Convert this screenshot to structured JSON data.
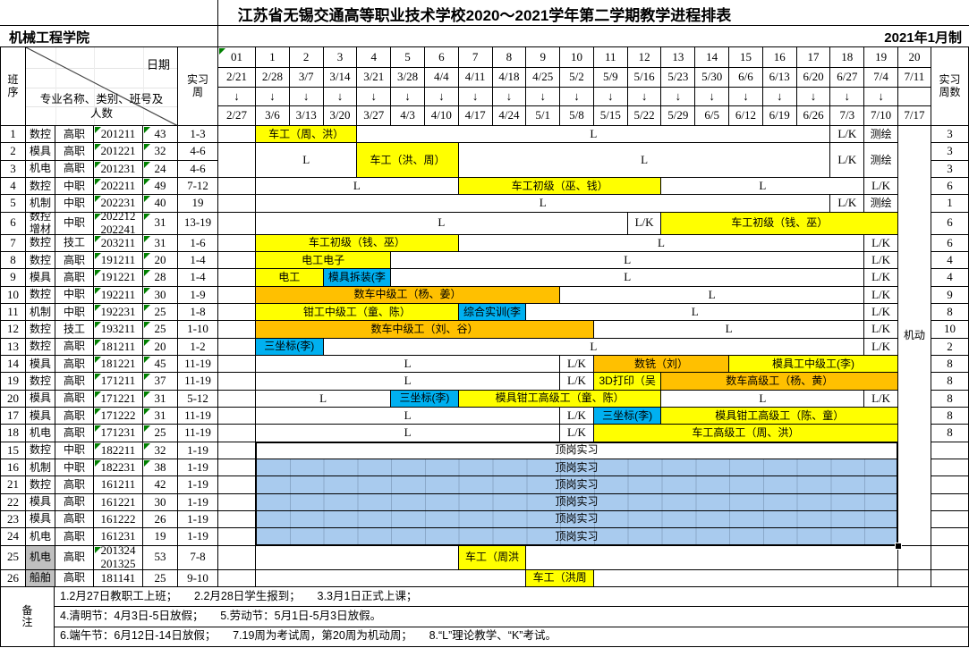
{
  "title": "江苏省无锡交通高等职业技术学校2020～2021学年第二学期教学进程排表",
  "org": "机械工程学院",
  "made": "2021年1月制",
  "header": {
    "seq": "班\n序",
    "dateLabel": "日期",
    "majorLabel": "专业名称、类别、班号及\n人数",
    "practiceWeek": "实习\n周",
    "practiceWeekCount": "实习\n周数",
    "flexible": "机动",
    "arrow": "↓"
  },
  "colors": {
    "yellow": "#FFFF00",
    "orange": "#FFC000",
    "cyan": "#00B0F0",
    "ojt_blue": "#A9CBEE",
    "gray_cell": "#C0C0C0",
    "comment_green": "#008000"
  },
  "weeks": [
    {
      "n": "01",
      "d1": "2/21",
      "d2": "2/27",
      "arrow": true
    },
    {
      "n": "1",
      "d1": "2/28",
      "d2": "3/6",
      "arrow": true
    },
    {
      "n": "2",
      "d1": "3/7",
      "d2": "3/13",
      "arrow": true
    },
    {
      "n": "3",
      "d1": "3/14",
      "d2": "3/20",
      "arrow": true
    },
    {
      "n": "4",
      "d1": "3/21",
      "d2": "3/27",
      "arrow": true
    },
    {
      "n": "5",
      "d1": "3/28",
      "d2": "4/3",
      "arrow": true
    },
    {
      "n": "6",
      "d1": "4/4",
      "d2": "4/10",
      "arrow": true
    },
    {
      "n": "7",
      "d1": "4/11",
      "d2": "4/17",
      "arrow": true
    },
    {
      "n": "8",
      "d1": "4/18",
      "d2": "4/24",
      "arrow": true
    },
    {
      "n": "9",
      "d1": "4/25",
      "d2": "5/1",
      "arrow": true
    },
    {
      "n": "10",
      "d1": "5/2",
      "d2": "5/8",
      "arrow": true
    },
    {
      "n": "11",
      "d1": "5/9",
      "d2": "5/15",
      "arrow": true
    },
    {
      "n": "12",
      "d1": "5/16",
      "d2": "5/22",
      "arrow": true
    },
    {
      "n": "13",
      "d1": "5/23",
      "d2": "5/29",
      "arrow": true
    },
    {
      "n": "14",
      "d1": "5/30",
      "d2": "6/5",
      "arrow": true
    },
    {
      "n": "15",
      "d1": "6/6",
      "d2": "6/12",
      "arrow": true
    },
    {
      "n": "16",
      "d1": "6/13",
      "d2": "6/19",
      "arrow": true
    },
    {
      "n": "17",
      "d1": "6/20",
      "d2": "6/26",
      "arrow": true
    },
    {
      "n": "18",
      "d1": "6/27",
      "d2": "7/3",
      "arrow": true
    },
    {
      "n": "19",
      "d1": "7/4",
      "d2": "7/10",
      "arrow": true
    },
    {
      "n": "20",
      "d1": "7/11",
      "d2": "7/17",
      "arrow": false
    }
  ],
  "rows": [
    {
      "seq": "1",
      "major": "数控",
      "cat": "高职",
      "cls": "201211",
      "cnt": "43",
      "wk": "1-3",
      "val": "3",
      "mark": "both",
      "tl": {
        "span": 1,
        "segs": [
          {
            "s": 1,
            "e": 3,
            "t": "车工（周、洪）",
            "c": "y"
          },
          {
            "s": 4,
            "e": 17,
            "t": "L",
            "c": "w"
          },
          {
            "s": 18,
            "e": 18,
            "t": "L/K",
            "c": "w"
          },
          {
            "s": 19,
            "e": 19,
            "t": "测绘",
            "c": "w"
          }
        ]
      }
    },
    {
      "seq": "2",
      "major": "模具",
      "cat": "高职",
      "cls": "201221",
      "cnt": "32",
      "wk": "4-6",
      "val": "3",
      "mark": "both",
      "tl": {
        "span": 2,
        "segs": [
          {
            "s": 1,
            "e": 3,
            "t": "L",
            "c": "w"
          },
          {
            "s": 4,
            "e": 6,
            "t": "车工（洪、周）",
            "c": "y"
          },
          {
            "s": 7,
            "e": 17,
            "t": "L",
            "c": "w"
          },
          {
            "s": 18,
            "e": 18,
            "t": "L/K",
            "c": "w"
          },
          {
            "s": 19,
            "e": 19,
            "t": "测绘",
            "c": "w"
          }
        ]
      }
    },
    {
      "seq": "3",
      "major": "机电",
      "cat": "高职",
      "cls": "201231",
      "cnt": "24",
      "wk": "4-6",
      "val": "3",
      "mark": "both",
      "tl": null
    },
    {
      "seq": "4",
      "major": "数控",
      "cat": "中职",
      "cls": "202211",
      "cnt": "49",
      "wk": "7-12",
      "val": "6",
      "mark": "both",
      "tl": {
        "span": 1,
        "segs": [
          {
            "s": 1,
            "e": 6,
            "t": "L",
            "c": "w"
          },
          {
            "s": 7,
            "e": 12,
            "t": "车工初级（巫、钱）",
            "c": "y"
          },
          {
            "s": 13,
            "e": 18,
            "t": "L",
            "c": "w"
          },
          {
            "s": 19,
            "e": 19,
            "t": "L/K",
            "c": "w"
          }
        ]
      }
    },
    {
      "seq": "5",
      "major": "机制",
      "cat": "中职",
      "cls": "202231",
      "cnt": "40",
      "wk": "19",
      "val": "1",
      "mark": "both",
      "tl": {
        "span": 1,
        "segs": [
          {
            "s": 1,
            "e": 17,
            "t": "L",
            "c": "w"
          },
          {
            "s": 18,
            "e": 18,
            "t": "L/K",
            "c": "w"
          },
          {
            "s": 19,
            "e": 19,
            "t": "测绘",
            "c": "w"
          }
        ]
      }
    },
    {
      "seq": "6",
      "major": "数控\n增材",
      "cat": "中职",
      "cls": "202212\n202241",
      "cnt": "31",
      "wk": "13-19",
      "val": "6",
      "mark": "both",
      "tl": {
        "span": 1,
        "segs": [
          {
            "s": 1,
            "e": 11,
            "t": "L",
            "c": "w"
          },
          {
            "s": 12,
            "e": 12,
            "t": "L/K",
            "c": "w"
          },
          {
            "s": 13,
            "e": 19,
            "t": "车工初级（钱、巫）",
            "c": "y"
          }
        ]
      }
    },
    {
      "seq": "7",
      "major": "数控",
      "cat": "技工",
      "cls": "203211",
      "cnt": "31",
      "wk": "1-6",
      "val": "6",
      "mark": "both",
      "tl": {
        "span": 1,
        "segs": [
          {
            "s": 1,
            "e": 6,
            "t": "车工初级（钱、巫）",
            "c": "y"
          },
          {
            "s": 7,
            "e": 18,
            "t": "L",
            "c": "w"
          },
          {
            "s": 19,
            "e": 19,
            "t": "L/K",
            "c": "w"
          }
        ]
      }
    },
    {
      "seq": "8",
      "major": "数控",
      "cat": "高职",
      "cls": "191211",
      "cnt": "20",
      "wk": "1-4",
      "val": "4",
      "mark": "both",
      "tl": {
        "span": 1,
        "segs": [
          {
            "s": 1,
            "e": 4,
            "t": "电工电子",
            "c": "y"
          },
          {
            "s": 5,
            "e": 18,
            "t": "L",
            "c": "w"
          },
          {
            "s": 19,
            "e": 19,
            "t": "L/K",
            "c": "w"
          }
        ]
      }
    },
    {
      "seq": "9",
      "major": "模具",
      "cat": "高职",
      "cls": "191221",
      "cnt": "28",
      "wk": "1-4",
      "val": "4",
      "mark": "both",
      "tl": {
        "span": 1,
        "segs": [
          {
            "s": 1,
            "e": 2,
            "t": "电工",
            "c": "y"
          },
          {
            "s": 3,
            "e": 4,
            "t": "模具拆装(李",
            "c": "c"
          },
          {
            "s": 5,
            "e": 18,
            "t": "L",
            "c": "w"
          },
          {
            "s": 19,
            "e": 19,
            "t": "L/K",
            "c": "w"
          }
        ]
      }
    },
    {
      "seq": "10",
      "major": "数控",
      "cat": "中职",
      "cls": "192211",
      "cnt": "30",
      "wk": "1-9",
      "val": "9",
      "mark": "both",
      "tl": {
        "span": 1,
        "segs": [
          {
            "s": 1,
            "e": 9,
            "t": "数车中级工（杨、姜）",
            "c": "o"
          },
          {
            "s": 10,
            "e": 18,
            "t": "L",
            "c": "w"
          },
          {
            "s": 19,
            "e": 19,
            "t": "L/K",
            "c": "w"
          }
        ]
      }
    },
    {
      "seq": "11",
      "major": "机制",
      "cat": "中职",
      "cls": "192231",
      "cnt": "25",
      "wk": "1-8",
      "val": "8",
      "mark": "both",
      "tl": {
        "span": 1,
        "segs": [
          {
            "s": 1,
            "e": 6,
            "t": "钳工中级工（童、陈）",
            "c": "y"
          },
          {
            "s": 7,
            "e": 8,
            "t": "综合实训(李",
            "c": "c"
          },
          {
            "s": 9,
            "e": 18,
            "t": "L",
            "c": "w"
          },
          {
            "s": 19,
            "e": 19,
            "t": "L/K",
            "c": "w"
          }
        ]
      }
    },
    {
      "seq": "12",
      "major": "数控",
      "cat": "技工",
      "cls": "193211",
      "cnt": "25",
      "wk": "1-10",
      "val": "10",
      "mark": "both",
      "tl": {
        "span": 1,
        "segs": [
          {
            "s": 1,
            "e": 10,
            "t": "数车中级工（刘、谷）",
            "c": "o"
          },
          {
            "s": 11,
            "e": 18,
            "t": "L",
            "c": "w"
          },
          {
            "s": 19,
            "e": 19,
            "t": "L/K",
            "c": "w"
          }
        ]
      }
    },
    {
      "seq": "13",
      "major": "数控",
      "cat": "高职",
      "cls": "181211",
      "cnt": "20",
      "wk": "1-2",
      "val": "2",
      "mark": "both",
      "tl": {
        "span": 1,
        "segs": [
          {
            "s": 1,
            "e": 2,
            "t": "三坐标(李)",
            "c": "c"
          },
          {
            "s": 3,
            "e": 18,
            "t": "L",
            "c": "w"
          },
          {
            "s": 19,
            "e": 19,
            "t": "L/K",
            "c": "w"
          }
        ]
      }
    },
    {
      "seq": "14",
      "major": "模具",
      "cat": "高职",
      "cls": "181221",
      "cnt": "45",
      "wk": "11-19",
      "val": "8",
      "mark": "both",
      "tl": {
        "span": 1,
        "segs": [
          {
            "s": 1,
            "e": 9,
            "t": "L",
            "c": "w"
          },
          {
            "s": 10,
            "e": 10,
            "t": "L/K",
            "c": "w"
          },
          {
            "s": 11,
            "e": 14,
            "t": "数铣（刘）",
            "c": "o"
          },
          {
            "s": 15,
            "e": 19,
            "t": "模具工中级工(李)",
            "c": "y"
          }
        ]
      }
    },
    {
      "seq": "19",
      "major": "数控",
      "cat": "高职",
      "cls": "171211",
      "cnt": "37",
      "wk": "11-19",
      "val": "8",
      "mark": "both",
      "tl": {
        "span": 1,
        "segs": [
          {
            "s": 1,
            "e": 9,
            "t": "L",
            "c": "w"
          },
          {
            "s": 10,
            "e": 10,
            "t": "L/K",
            "c": "w"
          },
          {
            "s": 11,
            "e": 12,
            "t": "3D打印（吴",
            "c": "y"
          },
          {
            "s": 13,
            "e": 19,
            "t": "数车高级工（杨、黄）",
            "c": "o"
          }
        ]
      }
    },
    {
      "seq": "20",
      "major": "模具",
      "cat": "高职",
      "cls": "171221",
      "cnt": "31",
      "wk": "5-12",
      "val": "8",
      "mark": "both",
      "tl": {
        "span": 1,
        "segs": [
          {
            "s": 1,
            "e": 4,
            "t": "L",
            "c": "w"
          },
          {
            "s": 5,
            "e": 6,
            "t": "三坐标(李)",
            "c": "c"
          },
          {
            "s": 7,
            "e": 12,
            "t": "模具钳工高级工（童、陈）",
            "c": "y"
          },
          {
            "s": 13,
            "e": 18,
            "t": "L",
            "c": "w"
          },
          {
            "s": 19,
            "e": 19,
            "t": "L/K",
            "c": "w"
          }
        ]
      }
    },
    {
      "seq": "17",
      "major": "模具",
      "cat": "高职",
      "cls": "171222",
      "cnt": "31",
      "wk": "11-19",
      "val": "8",
      "mark": "both",
      "tl": {
        "span": 1,
        "segs": [
          {
            "s": 1,
            "e": 9,
            "t": "L",
            "c": "w"
          },
          {
            "s": 10,
            "e": 10,
            "t": "L/K",
            "c": "w"
          },
          {
            "s": 11,
            "e": 12,
            "t": "三坐标(李)",
            "c": "c"
          },
          {
            "s": 13,
            "e": 19,
            "t": "模具钳工高级工（陈、童）",
            "c": "y"
          }
        ]
      }
    },
    {
      "seq": "18",
      "major": "机电",
      "cat": "高职",
      "cls": "171231",
      "cnt": "25",
      "wk": "11-19",
      "val": "8",
      "mark": "both",
      "tl": {
        "span": 1,
        "segs": [
          {
            "s": 1,
            "e": 9,
            "t": "L",
            "c": "w"
          },
          {
            "s": 10,
            "e": 10,
            "t": "L/K",
            "c": "w"
          },
          {
            "s": 11,
            "e": 19,
            "t": "车工高级工（周、洪）",
            "c": "y"
          }
        ]
      }
    },
    {
      "seq": "15",
      "major": "数控",
      "cat": "中职",
      "cls": "182211",
      "cnt": "32",
      "wk": "1-19",
      "val": "",
      "mark": "both",
      "block": true,
      "tl": {
        "span": 1,
        "segs": [
          {
            "s": 1,
            "e": 19,
            "t": "顶岗实习",
            "c": "w"
          }
        ]
      }
    },
    {
      "seq": "16",
      "major": "机制",
      "cat": "中职",
      "cls": "182231",
      "cnt": "38",
      "wk": "1-19",
      "val": "",
      "mark": "both",
      "block": true,
      "tl": {
        "span": 1,
        "segs": [
          {
            "s": 1,
            "e": 19,
            "t": "顶岗实习",
            "c": "b"
          }
        ]
      }
    },
    {
      "seq": "21",
      "major": "数控",
      "cat": "高职",
      "cls": "161211",
      "cnt": "42",
      "wk": "1-19",
      "val": "",
      "mark": "none",
      "block": true,
      "tl": {
        "span": 1,
        "segs": [
          {
            "s": 1,
            "e": 19,
            "t": "顶岗实习",
            "c": "b"
          }
        ]
      }
    },
    {
      "seq": "22",
      "major": "模具",
      "cat": "高职",
      "cls": "161221",
      "cnt": "30",
      "wk": "1-19",
      "val": "",
      "mark": "none",
      "block": true,
      "tl": {
        "span": 1,
        "segs": [
          {
            "s": 1,
            "e": 19,
            "t": "顶岗实习",
            "c": "b"
          }
        ]
      }
    },
    {
      "seq": "23",
      "major": "模具",
      "cat": "高职",
      "cls": "161222",
      "cnt": "26",
      "wk": "1-19",
      "val": "",
      "mark": "none",
      "block": true,
      "tl": {
        "span": 1,
        "segs": [
          {
            "s": 1,
            "e": 19,
            "t": "顶岗实习",
            "c": "b"
          }
        ]
      }
    },
    {
      "seq": "24",
      "major": "机电",
      "cat": "高职",
      "cls": "161231",
      "cnt": "19",
      "wk": "1-19",
      "val": "",
      "mark": "none",
      "block": true,
      "tl": {
        "span": 1,
        "segs": [
          {
            "s": 1,
            "e": 19,
            "t": "顶岗实习",
            "c": "b"
          }
        ]
      }
    },
    {
      "seq": "25",
      "major": "机电",
      "gray": true,
      "cat": "高职",
      "cls": "201324\n201325",
      "cnt": "53",
      "wk": "7-8",
      "val": "",
      "mark": "cls",
      "tl": {
        "span": 1,
        "segs": [
          {
            "s": 1,
            "e": 6,
            "t": "",
            "c": "w"
          },
          {
            "s": 7,
            "e": 8,
            "t": "车工（周洪",
            "c": "y"
          },
          {
            "s": 9,
            "e": 19,
            "t": "",
            "c": "w"
          }
        ]
      }
    },
    {
      "seq": "26",
      "major": "船舶",
      "gray": true,
      "cat": "高职",
      "cls": "181141",
      "cnt": "25",
      "wk": "9-10",
      "val": "",
      "mark": "none",
      "tl": {
        "span": 1,
        "segs": [
          {
            "s": 1,
            "e": 8,
            "t": "",
            "c": "w"
          },
          {
            "s": 9,
            "e": 10,
            "t": "车工（洪周",
            "c": "y"
          },
          {
            "s": 11,
            "e": 19,
            "t": "",
            "c": "w"
          }
        ]
      }
    }
  ],
  "notes": {
    "label": "备\n注",
    "lines": [
      "1.2月27日教职工上班；　　2.2月28日学生报到；　　3.3月1日正式上课；",
      "4.清明节：4月3日-5日放假；　　5.劳动节：5月1日-5月3日放假。",
      "6.端午节：6月12日-14日放假；　　7.19周为考试周，第20周为机动周；　　8.“L”理论教学、“K”考试。"
    ]
  }
}
